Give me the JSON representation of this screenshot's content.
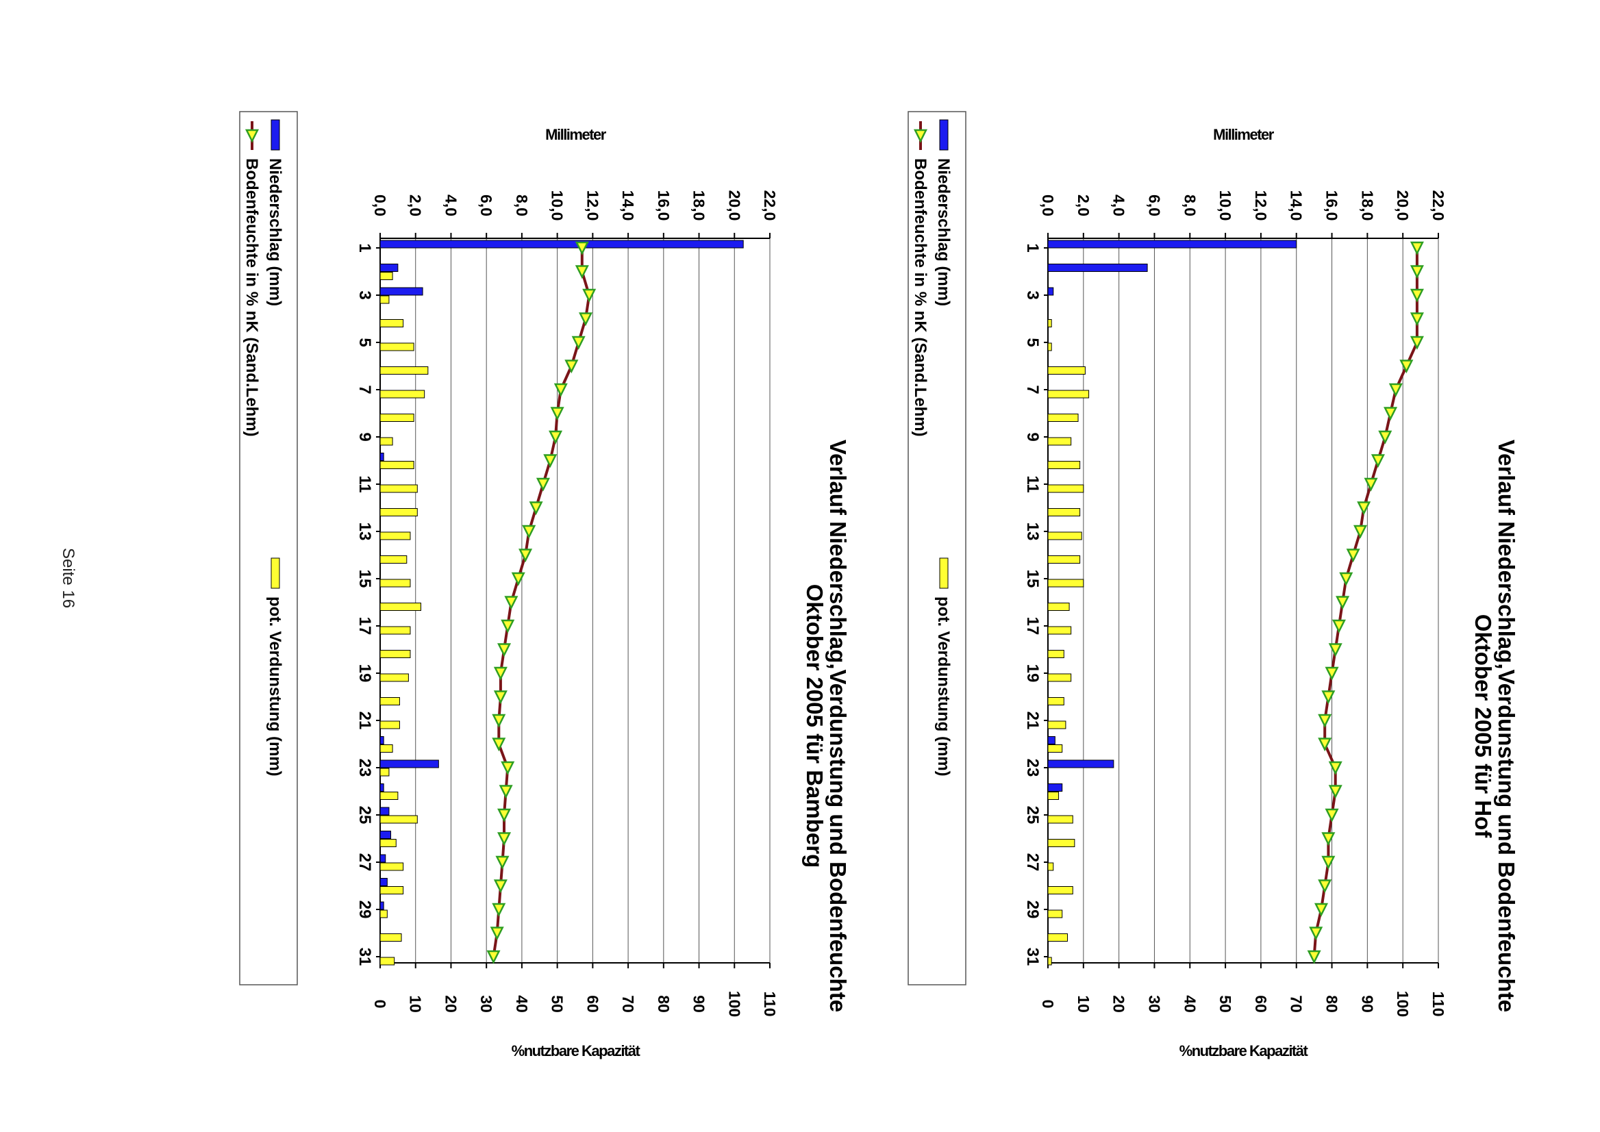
{
  "page": {
    "footer": "Seite 16"
  },
  "colors": {
    "rain": "#1c1cf0",
    "evap": "#ffff33",
    "moisture_line": "#7a1418",
    "marker": "#ffff33",
    "marker_edge": "#2e9e22"
  },
  "chart_data": [
    {
      "type": "bar",
      "title_line1": "Verlauf Niederschlag,Verdunstung und Bodenfeuchte",
      "title_line2": "Oktober 2005 für Hof",
      "mm_axis_title": "Millimeter",
      "pct_axis_title": "%nutzbare Kapazität",
      "mm_ticks": [
        "0,0",
        "2,0",
        "4,0",
        "6,0",
        "8,0",
        "10,0",
        "12,0",
        "14,0",
        "16,0",
        "18,0",
        "20,0",
        "22,0"
      ],
      "pct_ticks": [
        "0",
        "10",
        "20",
        "30",
        "40",
        "50",
        "60",
        "70",
        "80",
        "90",
        "100",
        "110"
      ],
      "day_ticks": [
        "1",
        "3",
        "5",
        "7",
        "9",
        "11",
        "13",
        "15",
        "17",
        "19",
        "21",
        "23",
        "25",
        "27",
        "29",
        "31"
      ],
      "mm_range": [
        0,
        22
      ],
      "pct_range": [
        0,
        110
      ],
      "legend": {
        "rain": "Niederschlag (mm)",
        "evap": "pot. Verdunstung (mm)",
        "moisture": "Bodenfeuchte in % nK (Sand.Lehm)"
      },
      "days": [
        1,
        2,
        3,
        4,
        5,
        6,
        7,
        8,
        9,
        10,
        11,
        12,
        13,
        14,
        15,
        16,
        17,
        18,
        19,
        20,
        21,
        22,
        23,
        24,
        25,
        26,
        27,
        28,
        29,
        30,
        31
      ],
      "rain_mm": [
        14.0,
        5.6,
        0.3,
        0,
        0,
        0,
        0,
        0,
        0,
        0,
        0,
        0,
        0,
        0,
        0,
        0,
        0,
        0,
        0,
        0,
        0,
        0.4,
        3.7,
        0.8,
        0,
        0,
        0,
        0,
        0,
        0,
        0
      ],
      "evap_mm": [
        0,
        0,
        0,
        0.2,
        0.2,
        2.1,
        2.3,
        1.7,
        1.3,
        1.8,
        2.0,
        1.8,
        1.9,
        1.8,
        2.0,
        1.2,
        1.3,
        0.9,
        1.3,
        0.9,
        1.0,
        0.8,
        0,
        0.6,
        1.4,
        1.5,
        0.3,
        1.4,
        0.8,
        1.1,
        0.2
      ],
      "moisture_pct": [
        104,
        104,
        104,
        104,
        104,
        101,
        98,
        96.5,
        95,
        93,
        91,
        89,
        88,
        86,
        84,
        83,
        82,
        81,
        80,
        79,
        78,
        78,
        81,
        81,
        80,
        79,
        79,
        78,
        77,
        75.5,
        75
      ]
    },
    {
      "type": "bar",
      "title_line1": "Verlauf Niederschlag,Verdunstung und Bodenfeuchte",
      "title_line2": "Oktober 2005 für Bamberg",
      "mm_axis_title": "Millimeter",
      "pct_axis_title": "%nutzbare Kapazität",
      "mm_ticks": [
        "0,0",
        "2,0",
        "4,0",
        "6,0",
        "8,0",
        "10,0",
        "12,0",
        "14,0",
        "16,0",
        "18,0",
        "20,0",
        "22,0"
      ],
      "pct_ticks": [
        "0",
        "10",
        "20",
        "30",
        "40",
        "50",
        "60",
        "70",
        "80",
        "90",
        "100",
        "110"
      ],
      "day_ticks": [
        "1",
        "3",
        "5",
        "7",
        "9",
        "11",
        "13",
        "15",
        "17",
        "19",
        "21",
        "23",
        "25",
        "27",
        "29",
        "31"
      ],
      "mm_range": [
        0,
        22
      ],
      "pct_range": [
        0,
        110
      ],
      "legend": {
        "rain": "Niederschlag (mm)",
        "evap": "pot. Verdunstung (mm)",
        "moisture": "Bodenfeuchte in % nK (Sand.Lehm)"
      },
      "days": [
        1,
        2,
        3,
        4,
        5,
        6,
        7,
        8,
        9,
        10,
        11,
        12,
        13,
        14,
        15,
        16,
        17,
        18,
        19,
        20,
        21,
        22,
        23,
        24,
        25,
        26,
        27,
        28,
        29,
        30,
        31
      ],
      "rain_mm": [
        20.5,
        1.0,
        2.4,
        0,
        0,
        0,
        0,
        0,
        0,
        0.2,
        0,
        0,
        0,
        0,
        0,
        0,
        0,
        0,
        0,
        0,
        0,
        0.2,
        3.3,
        0.2,
        0.5,
        0.6,
        0.3,
        0.4,
        0.2,
        0,
        0
      ],
      "evap_mm": [
        0,
        0.7,
        0.5,
        1.3,
        1.9,
        2.7,
        2.5,
        1.9,
        0.7,
        1.9,
        2.1,
        2.1,
        1.7,
        1.5,
        1.7,
        2.3,
        1.7,
        1.7,
        1.6,
        1.1,
        1.1,
        0.7,
        0.5,
        1.0,
        2.1,
        0.9,
        1.3,
        1.3,
        0.4,
        1.2,
        0.8
      ],
      "moisture_pct": [
        57,
        57,
        59,
        58,
        56,
        54,
        51,
        50,
        49.5,
        48,
        46,
        44,
        42,
        41,
        39,
        37,
        36,
        35,
        34,
        34,
        33.5,
        33.5,
        36,
        35.5,
        35,
        35,
        34.5,
        34,
        33.5,
        33,
        32
      ]
    }
  ]
}
